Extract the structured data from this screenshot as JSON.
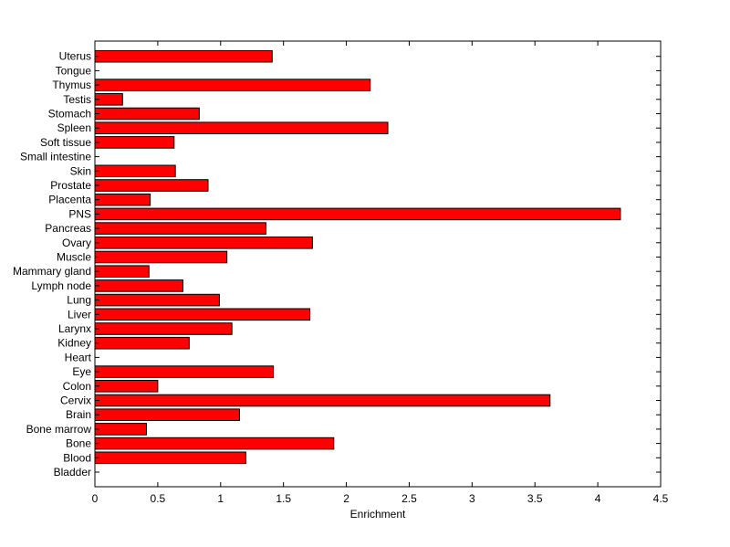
{
  "chart_data": {
    "type": "bar",
    "orientation": "horizontal",
    "title": "",
    "xlabel": "Enrichment",
    "ylabel": "",
    "xlim": [
      0,
      4.5
    ],
    "x_ticks": [
      0,
      0.5,
      1,
      1.5,
      2,
      2.5,
      3,
      3.5,
      4,
      4.5
    ],
    "x_tick_labels": [
      "0",
      "0.5",
      "1",
      "1.5",
      "2",
      "2.5",
      "3",
      "3.5",
      "4",
      "4.5"
    ],
    "grid": false,
    "bar_color": "#ff0000",
    "edge_color": "#000000",
    "categories": [
      "Bladder",
      "Blood",
      "Bone",
      "Bone marrow",
      "Brain",
      "Cervix",
      "Colon",
      "Eye",
      "Heart",
      "Kidney",
      "Larynx",
      "Liver",
      "Lung",
      "Lymph node",
      "Mammary gland",
      "Muscle",
      "Ovary",
      "Pancreas",
      "PNS",
      "Placenta",
      "Prostate",
      "Skin",
      "Small intestine",
      "Soft tissue",
      "Spleen",
      "Stomach",
      "Testis",
      "Thymus",
      "Tongue",
      "Uterus"
    ],
    "values": [
      0,
      1.2,
      1.9,
      0.41,
      1.15,
      3.62,
      0.5,
      1.42,
      0,
      0.75,
      1.09,
      1.71,
      0.99,
      0.7,
      0.43,
      1.05,
      1.73,
      1.36,
      4.18,
      0.44,
      0.9,
      0.64,
      0,
      0.63,
      2.33,
      0.83,
      0.22,
      2.19,
      0,
      1.41
    ]
  }
}
